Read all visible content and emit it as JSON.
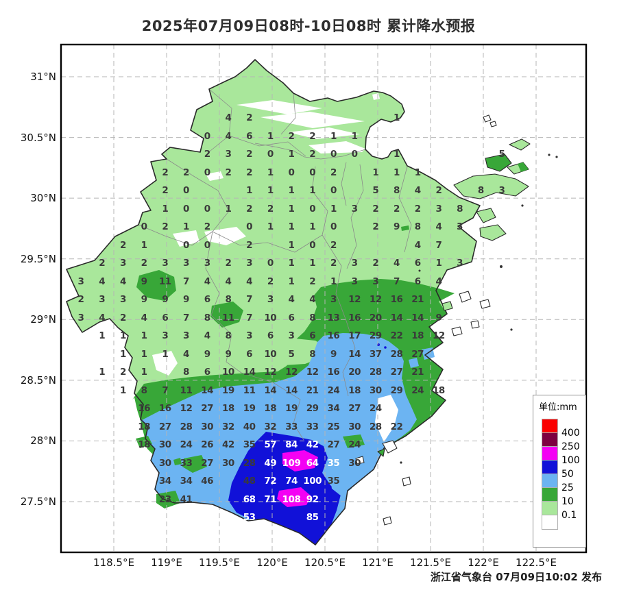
{
  "title": "2025年07月09日08时-10日08时 累计降水预报",
  "attribution": "浙江省气象台 07月09日10:02 发布",
  "axes": {
    "x_labels": [
      "118.5°E",
      "119°E",
      "119.5°E",
      "120°E",
      "120.5°E",
      "121°E",
      "121.5°E",
      "122°E",
      "122.5°E"
    ],
    "y_labels": [
      "31°N",
      "30.5°N",
      "30°N",
      "29.5°N",
      "29°N",
      "28.5°N",
      "28°N",
      "27.5°N"
    ]
  },
  "legend": {
    "title": "单位:mm",
    "thresholds": [
      "400",
      "250",
      "100",
      "50",
      "25",
      "10",
      "0.1"
    ],
    "band_colors": [
      "#fa0000",
      "#7d0041",
      "#f400f4",
      "#1111d8",
      "#6cb4f2",
      "#38a738",
      "#a9e79b",
      "#ffffff"
    ]
  },
  "map_colors": {
    "below_0_1": "#ffffff",
    "band_0_1_to_10": "#a9e79b",
    "band_10_to_25": "#38a738",
    "band_25_to_50": "#6cb4f2",
    "band_50_to_100": "#1111d8",
    "band_100_to_250": "#f400f4",
    "band_250_to_400": "#7d0041",
    "above_400": "#fa0000"
  },
  "grid": {
    "rows": [
      {
        "r": 0,
        "cells": [
          [
            7,
            "4"
          ],
          [
            8,
            "2"
          ],
          [
            15,
            "1"
          ]
        ]
      },
      {
        "r": 1,
        "cells": [
          [
            6,
            "0"
          ],
          [
            7,
            "4"
          ],
          [
            8,
            "6"
          ],
          [
            9,
            "1"
          ],
          [
            10,
            "2"
          ],
          [
            11,
            "2"
          ],
          [
            12,
            "1"
          ],
          [
            13,
            "1"
          ]
        ]
      },
      {
        "r": 2,
        "cells": [
          [
            6,
            "2"
          ],
          [
            7,
            "3"
          ],
          [
            8,
            "2"
          ],
          [
            9,
            "0"
          ],
          [
            10,
            "1"
          ],
          [
            11,
            "2"
          ],
          [
            12,
            "0"
          ],
          [
            13,
            "0"
          ],
          [
            15,
            "1"
          ],
          [
            20,
            "5"
          ]
        ]
      },
      {
        "r": 3,
        "cells": [
          [
            4,
            "2"
          ],
          [
            5,
            "2"
          ],
          [
            6,
            "0"
          ],
          [
            7,
            "2"
          ],
          [
            8,
            "2"
          ],
          [
            9,
            "1"
          ],
          [
            10,
            "0"
          ],
          [
            11,
            "0"
          ],
          [
            12,
            "2"
          ],
          [
            14,
            "1"
          ],
          [
            15,
            "1"
          ],
          [
            16,
            "1"
          ]
        ]
      },
      {
        "r": 4,
        "cells": [
          [
            4,
            "2"
          ],
          [
            5,
            "0"
          ],
          [
            8,
            "1"
          ],
          [
            9,
            "1"
          ],
          [
            10,
            "1"
          ],
          [
            11,
            "1"
          ],
          [
            12,
            "0"
          ],
          [
            14,
            "5"
          ],
          [
            15,
            "8"
          ],
          [
            16,
            "4"
          ],
          [
            17,
            "2"
          ],
          [
            19,
            "8"
          ],
          [
            20,
            "3"
          ]
        ]
      },
      {
        "r": 5,
        "cells": [
          [
            4,
            "1"
          ],
          [
            5,
            "0"
          ],
          [
            6,
            "0"
          ],
          [
            7,
            "1"
          ],
          [
            8,
            "2"
          ],
          [
            9,
            "2"
          ],
          [
            10,
            "1"
          ],
          [
            11,
            "0"
          ],
          [
            12,
            "1"
          ],
          [
            13,
            "3"
          ],
          [
            14,
            "2"
          ],
          [
            15,
            "2"
          ],
          [
            16,
            "2"
          ],
          [
            17,
            "3"
          ],
          [
            18,
            "8"
          ]
        ]
      },
      {
        "r": 6,
        "cells": [
          [
            3,
            "0"
          ],
          [
            4,
            "2"
          ],
          [
            5,
            "1"
          ],
          [
            6,
            "2"
          ],
          [
            8,
            "0"
          ],
          [
            9,
            "1"
          ],
          [
            10,
            "1"
          ],
          [
            11,
            "1"
          ],
          [
            12,
            "0"
          ],
          [
            14,
            "2"
          ],
          [
            15,
            "9"
          ],
          [
            16,
            "8"
          ],
          [
            17,
            "4"
          ],
          [
            18,
            "3"
          ]
        ]
      },
      {
        "r": 7,
        "cells": [
          [
            2,
            "2"
          ],
          [
            3,
            "1"
          ],
          [
            5,
            "0"
          ],
          [
            6,
            "0"
          ],
          [
            8,
            "2"
          ],
          [
            10,
            "1"
          ],
          [
            11,
            "0"
          ],
          [
            12,
            "2"
          ],
          [
            16,
            "4"
          ],
          [
            17,
            "7"
          ]
        ]
      },
      {
        "r": 8,
        "cells": [
          [
            1,
            "2"
          ],
          [
            2,
            "3"
          ],
          [
            3,
            "2"
          ],
          [
            4,
            "3"
          ],
          [
            5,
            "3"
          ],
          [
            6,
            "3"
          ],
          [
            7,
            "2"
          ],
          [
            8,
            "3"
          ],
          [
            9,
            "0"
          ],
          [
            10,
            "1"
          ],
          [
            11,
            "1"
          ],
          [
            12,
            "2"
          ],
          [
            13,
            "3"
          ],
          [
            14,
            "2"
          ],
          [
            15,
            "4"
          ],
          [
            16,
            "6"
          ],
          [
            17,
            "1"
          ],
          [
            18,
            "3"
          ]
        ]
      },
      {
        "r": 9,
        "cells": [
          [
            0,
            "3"
          ],
          [
            1,
            "4"
          ],
          [
            2,
            "4"
          ],
          [
            3,
            "9"
          ],
          [
            4,
            "11"
          ],
          [
            5,
            "7"
          ],
          [
            6,
            "4"
          ],
          [
            7,
            "4"
          ],
          [
            8,
            "4"
          ],
          [
            9,
            "2"
          ],
          [
            10,
            "1"
          ],
          [
            11,
            "2"
          ],
          [
            12,
            "1"
          ],
          [
            13,
            "3"
          ],
          [
            14,
            "3"
          ],
          [
            15,
            "7"
          ],
          [
            16,
            "6"
          ],
          [
            17,
            "4"
          ]
        ]
      },
      {
        "r": 10,
        "cells": [
          [
            0,
            "2"
          ],
          [
            1,
            "3"
          ],
          [
            2,
            "3"
          ],
          [
            3,
            "9"
          ],
          [
            4,
            "9"
          ],
          [
            5,
            "9"
          ],
          [
            6,
            "6"
          ],
          [
            7,
            "8"
          ],
          [
            8,
            "7"
          ],
          [
            9,
            "3"
          ],
          [
            10,
            "4"
          ],
          [
            11,
            "4"
          ],
          [
            12,
            "3"
          ],
          [
            13,
            "12"
          ],
          [
            14,
            "12"
          ],
          [
            15,
            "16"
          ],
          [
            16,
            "21"
          ]
        ]
      },
      {
        "r": 11,
        "cells": [
          [
            0,
            "3"
          ],
          [
            1,
            "4"
          ],
          [
            2,
            "2"
          ],
          [
            3,
            "4"
          ],
          [
            4,
            "6"
          ],
          [
            5,
            "7"
          ],
          [
            6,
            "8"
          ],
          [
            7,
            "11"
          ],
          [
            8,
            "7"
          ],
          [
            9,
            "10"
          ],
          [
            10,
            "6"
          ],
          [
            11,
            "8"
          ],
          [
            12,
            "13"
          ],
          [
            13,
            "16"
          ],
          [
            14,
            "20"
          ],
          [
            15,
            "14"
          ],
          [
            16,
            "14"
          ],
          [
            17,
            "9"
          ]
        ]
      },
      {
        "r": 12,
        "cells": [
          [
            1,
            "1"
          ],
          [
            2,
            "1"
          ],
          [
            3,
            "1"
          ],
          [
            4,
            "3"
          ],
          [
            5,
            "3"
          ],
          [
            6,
            "4"
          ],
          [
            7,
            "8"
          ],
          [
            8,
            "3"
          ],
          [
            9,
            "6"
          ],
          [
            10,
            "3"
          ],
          [
            11,
            "6"
          ],
          [
            12,
            "16"
          ],
          [
            13,
            "17"
          ],
          [
            14,
            "29"
          ],
          [
            15,
            "22"
          ],
          [
            16,
            "18"
          ],
          [
            17,
            "12"
          ]
        ]
      },
      {
        "r": 13,
        "cells": [
          [
            2,
            "1"
          ],
          [
            3,
            "1"
          ],
          [
            4,
            "1"
          ],
          [
            5,
            "4"
          ],
          [
            6,
            "9"
          ],
          [
            7,
            "9"
          ],
          [
            8,
            "6"
          ],
          [
            9,
            "10"
          ],
          [
            10,
            "5"
          ],
          [
            11,
            "8"
          ],
          [
            12,
            "9"
          ],
          [
            13,
            "14"
          ],
          [
            14,
            "37"
          ],
          [
            15,
            "28"
          ],
          [
            16,
            "27"
          ]
        ]
      },
      {
        "r": 14,
        "cells": [
          [
            1,
            "1"
          ],
          [
            2,
            "2"
          ],
          [
            3,
            "1"
          ],
          [
            5,
            "8"
          ],
          [
            6,
            "6"
          ],
          [
            7,
            "10"
          ],
          [
            8,
            "14"
          ],
          [
            9,
            "12"
          ],
          [
            10,
            "12"
          ],
          [
            11,
            "12"
          ],
          [
            12,
            "16"
          ],
          [
            13,
            "20"
          ],
          [
            14,
            "28"
          ],
          [
            15,
            "27"
          ],
          [
            16,
            "21"
          ]
        ]
      },
      {
        "r": 15,
        "cells": [
          [
            2,
            "1"
          ],
          [
            3,
            "8"
          ],
          [
            4,
            "7"
          ],
          [
            5,
            "11"
          ],
          [
            6,
            "14"
          ],
          [
            7,
            "19"
          ],
          [
            8,
            "11"
          ],
          [
            9,
            "14"
          ],
          [
            10,
            "14"
          ],
          [
            11,
            "21"
          ],
          [
            12,
            "24"
          ],
          [
            13,
            "18"
          ],
          [
            14,
            "30"
          ],
          [
            15,
            "29"
          ],
          [
            16,
            "24"
          ],
          [
            17,
            "18"
          ]
        ]
      },
      {
        "r": 16,
        "cells": [
          [
            3,
            "16"
          ],
          [
            4,
            "16"
          ],
          [
            5,
            "12"
          ],
          [
            6,
            "27"
          ],
          [
            7,
            "18"
          ],
          [
            8,
            "19"
          ],
          [
            9,
            "18"
          ],
          [
            10,
            "19"
          ],
          [
            11,
            "29"
          ],
          [
            12,
            "34"
          ],
          [
            13,
            "27"
          ],
          [
            14,
            "24"
          ]
        ]
      },
      {
        "r": 17,
        "cells": [
          [
            3,
            "18"
          ],
          [
            4,
            "27"
          ],
          [
            5,
            "28"
          ],
          [
            6,
            "30"
          ],
          [
            7,
            "32"
          ],
          [
            8,
            "40"
          ],
          [
            9,
            "32"
          ],
          [
            10,
            "33"
          ],
          [
            11,
            "33"
          ],
          [
            12,
            "25"
          ],
          [
            13,
            "30"
          ],
          [
            14,
            "28"
          ],
          [
            15,
            "22"
          ]
        ]
      },
      {
        "r": 18,
        "cells": [
          [
            3,
            "18"
          ],
          [
            4,
            "30"
          ],
          [
            5,
            "24"
          ],
          [
            6,
            "26"
          ],
          [
            7,
            "42"
          ],
          [
            8,
            "35"
          ],
          [
            9,
            "57",
            1
          ],
          [
            10,
            "84",
            1
          ],
          [
            11,
            "42",
            1
          ],
          [
            12,
            "27"
          ],
          [
            13,
            "24"
          ]
        ]
      },
      {
        "r": 19,
        "cells": [
          [
            4,
            "30"
          ],
          [
            5,
            "33"
          ],
          [
            6,
            "27"
          ],
          [
            7,
            "30"
          ],
          [
            8,
            "28"
          ],
          [
            9,
            "49",
            1
          ],
          [
            10,
            "109",
            1
          ],
          [
            11,
            "64",
            1
          ],
          [
            12,
            "35",
            1
          ],
          [
            13,
            "30"
          ]
        ]
      },
      {
        "r": 20,
        "cells": [
          [
            4,
            "34"
          ],
          [
            5,
            "34"
          ],
          [
            6,
            "46"
          ],
          [
            8,
            "48"
          ],
          [
            9,
            "72",
            1
          ],
          [
            10,
            "74",
            1
          ],
          [
            11,
            "100",
            1
          ],
          [
            12,
            "35"
          ]
        ]
      },
      {
        "r": 21,
        "cells": [
          [
            4,
            "23"
          ],
          [
            5,
            "41"
          ],
          [
            8,
            "68",
            1
          ],
          [
            9,
            "71",
            1
          ],
          [
            10,
            "108",
            1
          ],
          [
            11,
            "92",
            1
          ]
        ]
      },
      {
        "r": 22,
        "cells": [
          [
            8,
            "53",
            1
          ],
          [
            11,
            "85",
            1
          ]
        ]
      }
    ]
  }
}
